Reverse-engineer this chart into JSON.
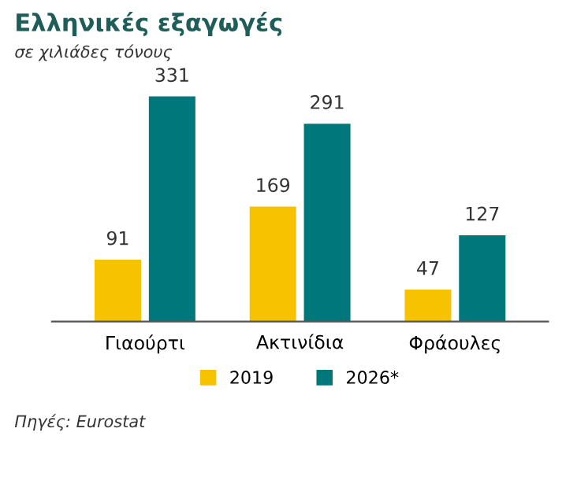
{
  "chart_data": {
    "type": "bar",
    "title": "Ελληνικές εξαγωγές",
    "subtitle": "σε χιλιάδες τόνους",
    "categories": [
      "Γιαούρτι",
      "Ακτινίδια",
      "Φράουλες"
    ],
    "series": [
      {
        "name": "2019",
        "color": "#f7c200",
        "values": [
          91,
          169,
          47
        ]
      },
      {
        "name": "2026*",
        "color": "#00777b",
        "values": [
          331,
          291,
          127
        ]
      }
    ],
    "data_labels": true,
    "legend": "bottom",
    "grid": false,
    "annotations": [
      "Πηγές: Eurostat"
    ]
  }
}
